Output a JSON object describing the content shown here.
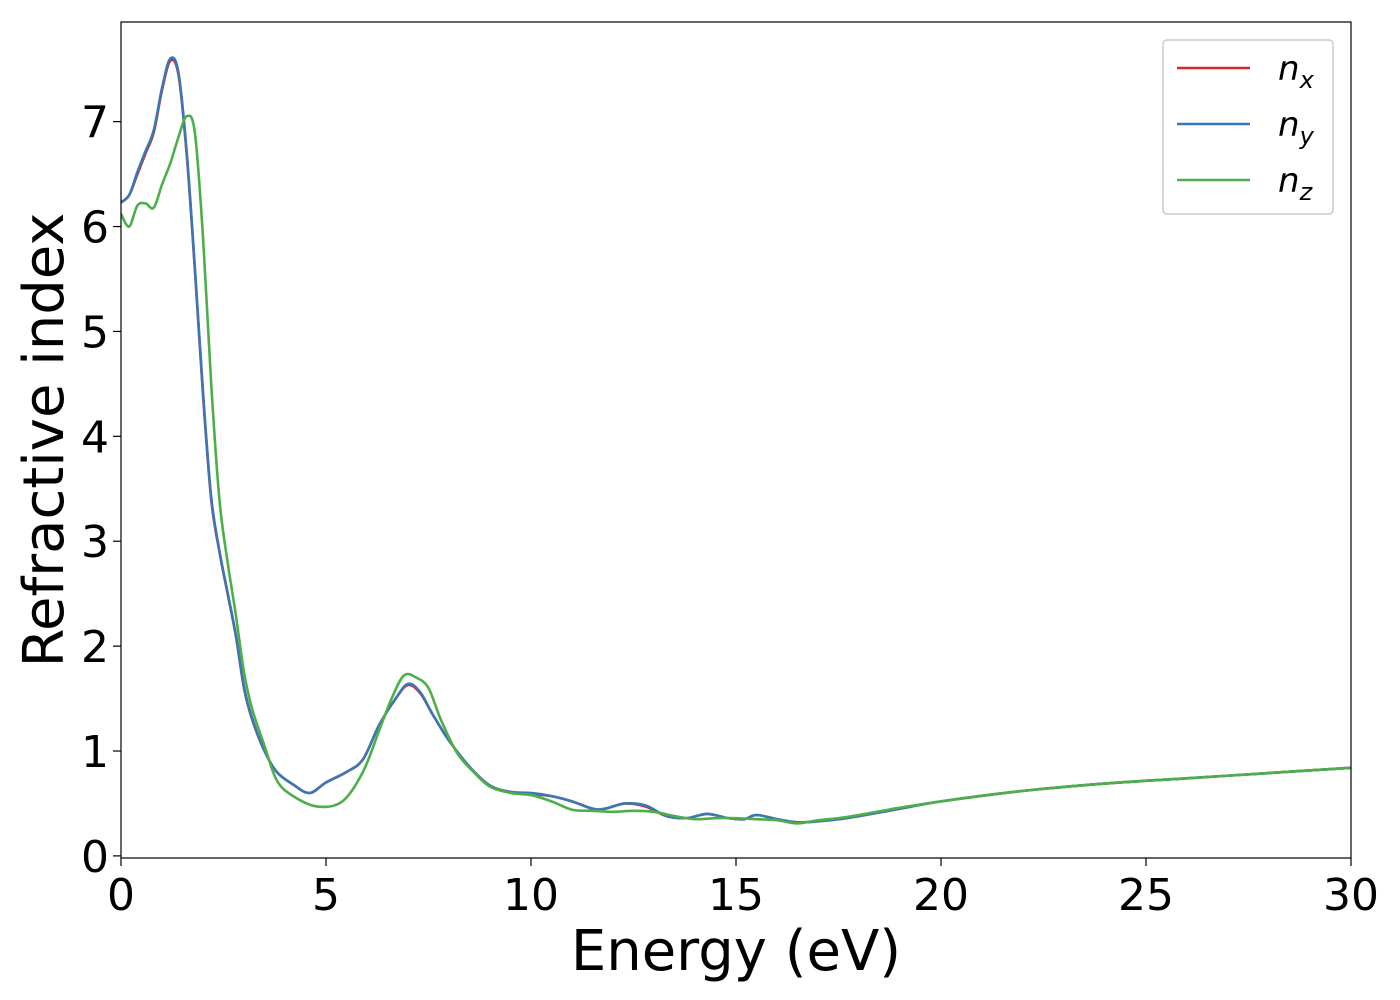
{
  "chart_data": {
    "type": "line",
    "title": "",
    "xlabel": "Energy (eV)",
    "ylabel": "Refractive index",
    "xlim": [
      0,
      30
    ],
    "ylim": [
      -0.02,
      7.95
    ],
    "xticks": [
      0,
      5,
      10,
      15,
      20,
      25,
      30
    ],
    "yticks": [
      0,
      1,
      2,
      3,
      4,
      5,
      6,
      7
    ],
    "grid": false,
    "legend": "top-right",
    "series": [
      {
        "name": "n_x",
        "label_base": "n",
        "label_sub": "x",
        "color": "#d62728",
        "x": [
          0,
          0.2,
          0.4,
          0.6,
          0.8,
          1.0,
          1.2,
          1.4,
          1.6,
          1.8,
          2.0,
          2.2,
          2.4,
          2.6,
          2.8,
          3.0,
          3.2,
          3.5,
          3.8,
          4.2,
          4.6,
          5.0,
          5.5,
          5.9,
          6.3,
          6.7,
          7.0,
          7.3,
          7.6,
          8.0,
          8.5,
          9.0,
          9.5,
          10.0,
          10.5,
          11.0,
          11.5,
          11.8,
          12.3,
          12.8,
          13.3,
          13.8,
          14.3,
          14.8,
          15.2,
          15.5,
          16.0,
          16.5,
          17.0,
          17.5,
          18.0,
          19.0,
          20.0,
          22.0,
          24.0,
          26.0,
          28.0,
          30.0
        ],
        "y": [
          6.23,
          6.3,
          6.5,
          6.7,
          6.9,
          7.3,
          7.58,
          7.45,
          6.7,
          5.6,
          4.4,
          3.4,
          2.9,
          2.5,
          2.1,
          1.6,
          1.3,
          1.0,
          0.8,
          0.68,
          0.6,
          0.7,
          0.8,
          0.92,
          1.25,
          1.5,
          1.63,
          1.55,
          1.35,
          1.1,
          0.85,
          0.67,
          0.61,
          0.59,
          0.57,
          0.52,
          0.45,
          0.45,
          0.5,
          0.47,
          0.38,
          0.36,
          0.4,
          0.36,
          0.35,
          0.39,
          0.35,
          0.32,
          0.33,
          0.35,
          0.38,
          0.45,
          0.52,
          0.62,
          0.69,
          0.74,
          0.79,
          0.84
        ]
      },
      {
        "name": "n_y",
        "label_base": "n",
        "label_sub": "y",
        "color": "#3a78b5",
        "x": [
          0,
          0.2,
          0.4,
          0.6,
          0.8,
          1.0,
          1.2,
          1.4,
          1.6,
          1.8,
          2.0,
          2.2,
          2.4,
          2.6,
          2.8,
          3.0,
          3.2,
          3.5,
          3.8,
          4.2,
          4.6,
          5.0,
          5.5,
          5.9,
          6.3,
          6.7,
          7.0,
          7.3,
          7.6,
          8.0,
          8.5,
          9.0,
          9.5,
          10.0,
          10.5,
          11.0,
          11.5,
          11.8,
          12.3,
          12.8,
          13.3,
          13.8,
          14.3,
          14.8,
          15.2,
          15.5,
          16.0,
          16.5,
          17.0,
          17.5,
          18.0,
          19.0,
          20.0,
          22.0,
          24.0,
          26.0,
          28.0,
          30.0
        ],
        "y": [
          6.23,
          6.3,
          6.52,
          6.72,
          6.92,
          7.32,
          7.6,
          7.47,
          6.72,
          5.62,
          4.42,
          3.42,
          2.91,
          2.51,
          2.11,
          1.61,
          1.31,
          1.0,
          0.8,
          0.68,
          0.6,
          0.7,
          0.8,
          0.92,
          1.25,
          1.5,
          1.64,
          1.56,
          1.35,
          1.1,
          0.85,
          0.67,
          0.61,
          0.6,
          0.57,
          0.52,
          0.45,
          0.45,
          0.5,
          0.48,
          0.38,
          0.36,
          0.4,
          0.36,
          0.35,
          0.39,
          0.35,
          0.32,
          0.33,
          0.35,
          0.38,
          0.45,
          0.52,
          0.62,
          0.69,
          0.74,
          0.79,
          0.84
        ]
      },
      {
        "name": "n_z",
        "label_base": "n",
        "label_sub": "z",
        "color": "#4daf4a",
        "x": [
          0,
          0.2,
          0.4,
          0.6,
          0.8,
          1.0,
          1.2,
          1.4,
          1.6,
          1.8,
          2.0,
          2.2,
          2.4,
          2.6,
          2.8,
          3.0,
          3.2,
          3.5,
          3.8,
          4.2,
          4.8,
          5.4,
          5.9,
          6.3,
          6.6,
          6.9,
          7.2,
          7.5,
          7.8,
          8.2,
          8.6,
          9.0,
          9.5,
          10.0,
          10.5,
          11.0,
          11.5,
          12.0,
          12.5,
          13.0,
          13.5,
          14.0,
          14.5,
          15.0,
          15.5,
          16.0,
          16.5,
          17.0,
          17.5,
          18.0,
          19.0,
          20.0,
          22.0,
          24.0,
          26.0,
          28.0,
          30.0
        ],
        "y": [
          6.12,
          6.0,
          6.2,
          6.22,
          6.18,
          6.4,
          6.6,
          6.85,
          7.05,
          6.9,
          5.9,
          4.5,
          3.4,
          2.8,
          2.3,
          1.75,
          1.4,
          1.05,
          0.72,
          0.57,
          0.47,
          0.52,
          0.8,
          1.2,
          1.5,
          1.72,
          1.7,
          1.6,
          1.3,
          0.98,
          0.8,
          0.66,
          0.6,
          0.58,
          0.52,
          0.44,
          0.43,
          0.42,
          0.43,
          0.42,
          0.38,
          0.35,
          0.36,
          0.36,
          0.35,
          0.34,
          0.31,
          0.34,
          0.36,
          0.39,
          0.46,
          0.52,
          0.62,
          0.69,
          0.74,
          0.79,
          0.84
        ]
      }
    ]
  }
}
